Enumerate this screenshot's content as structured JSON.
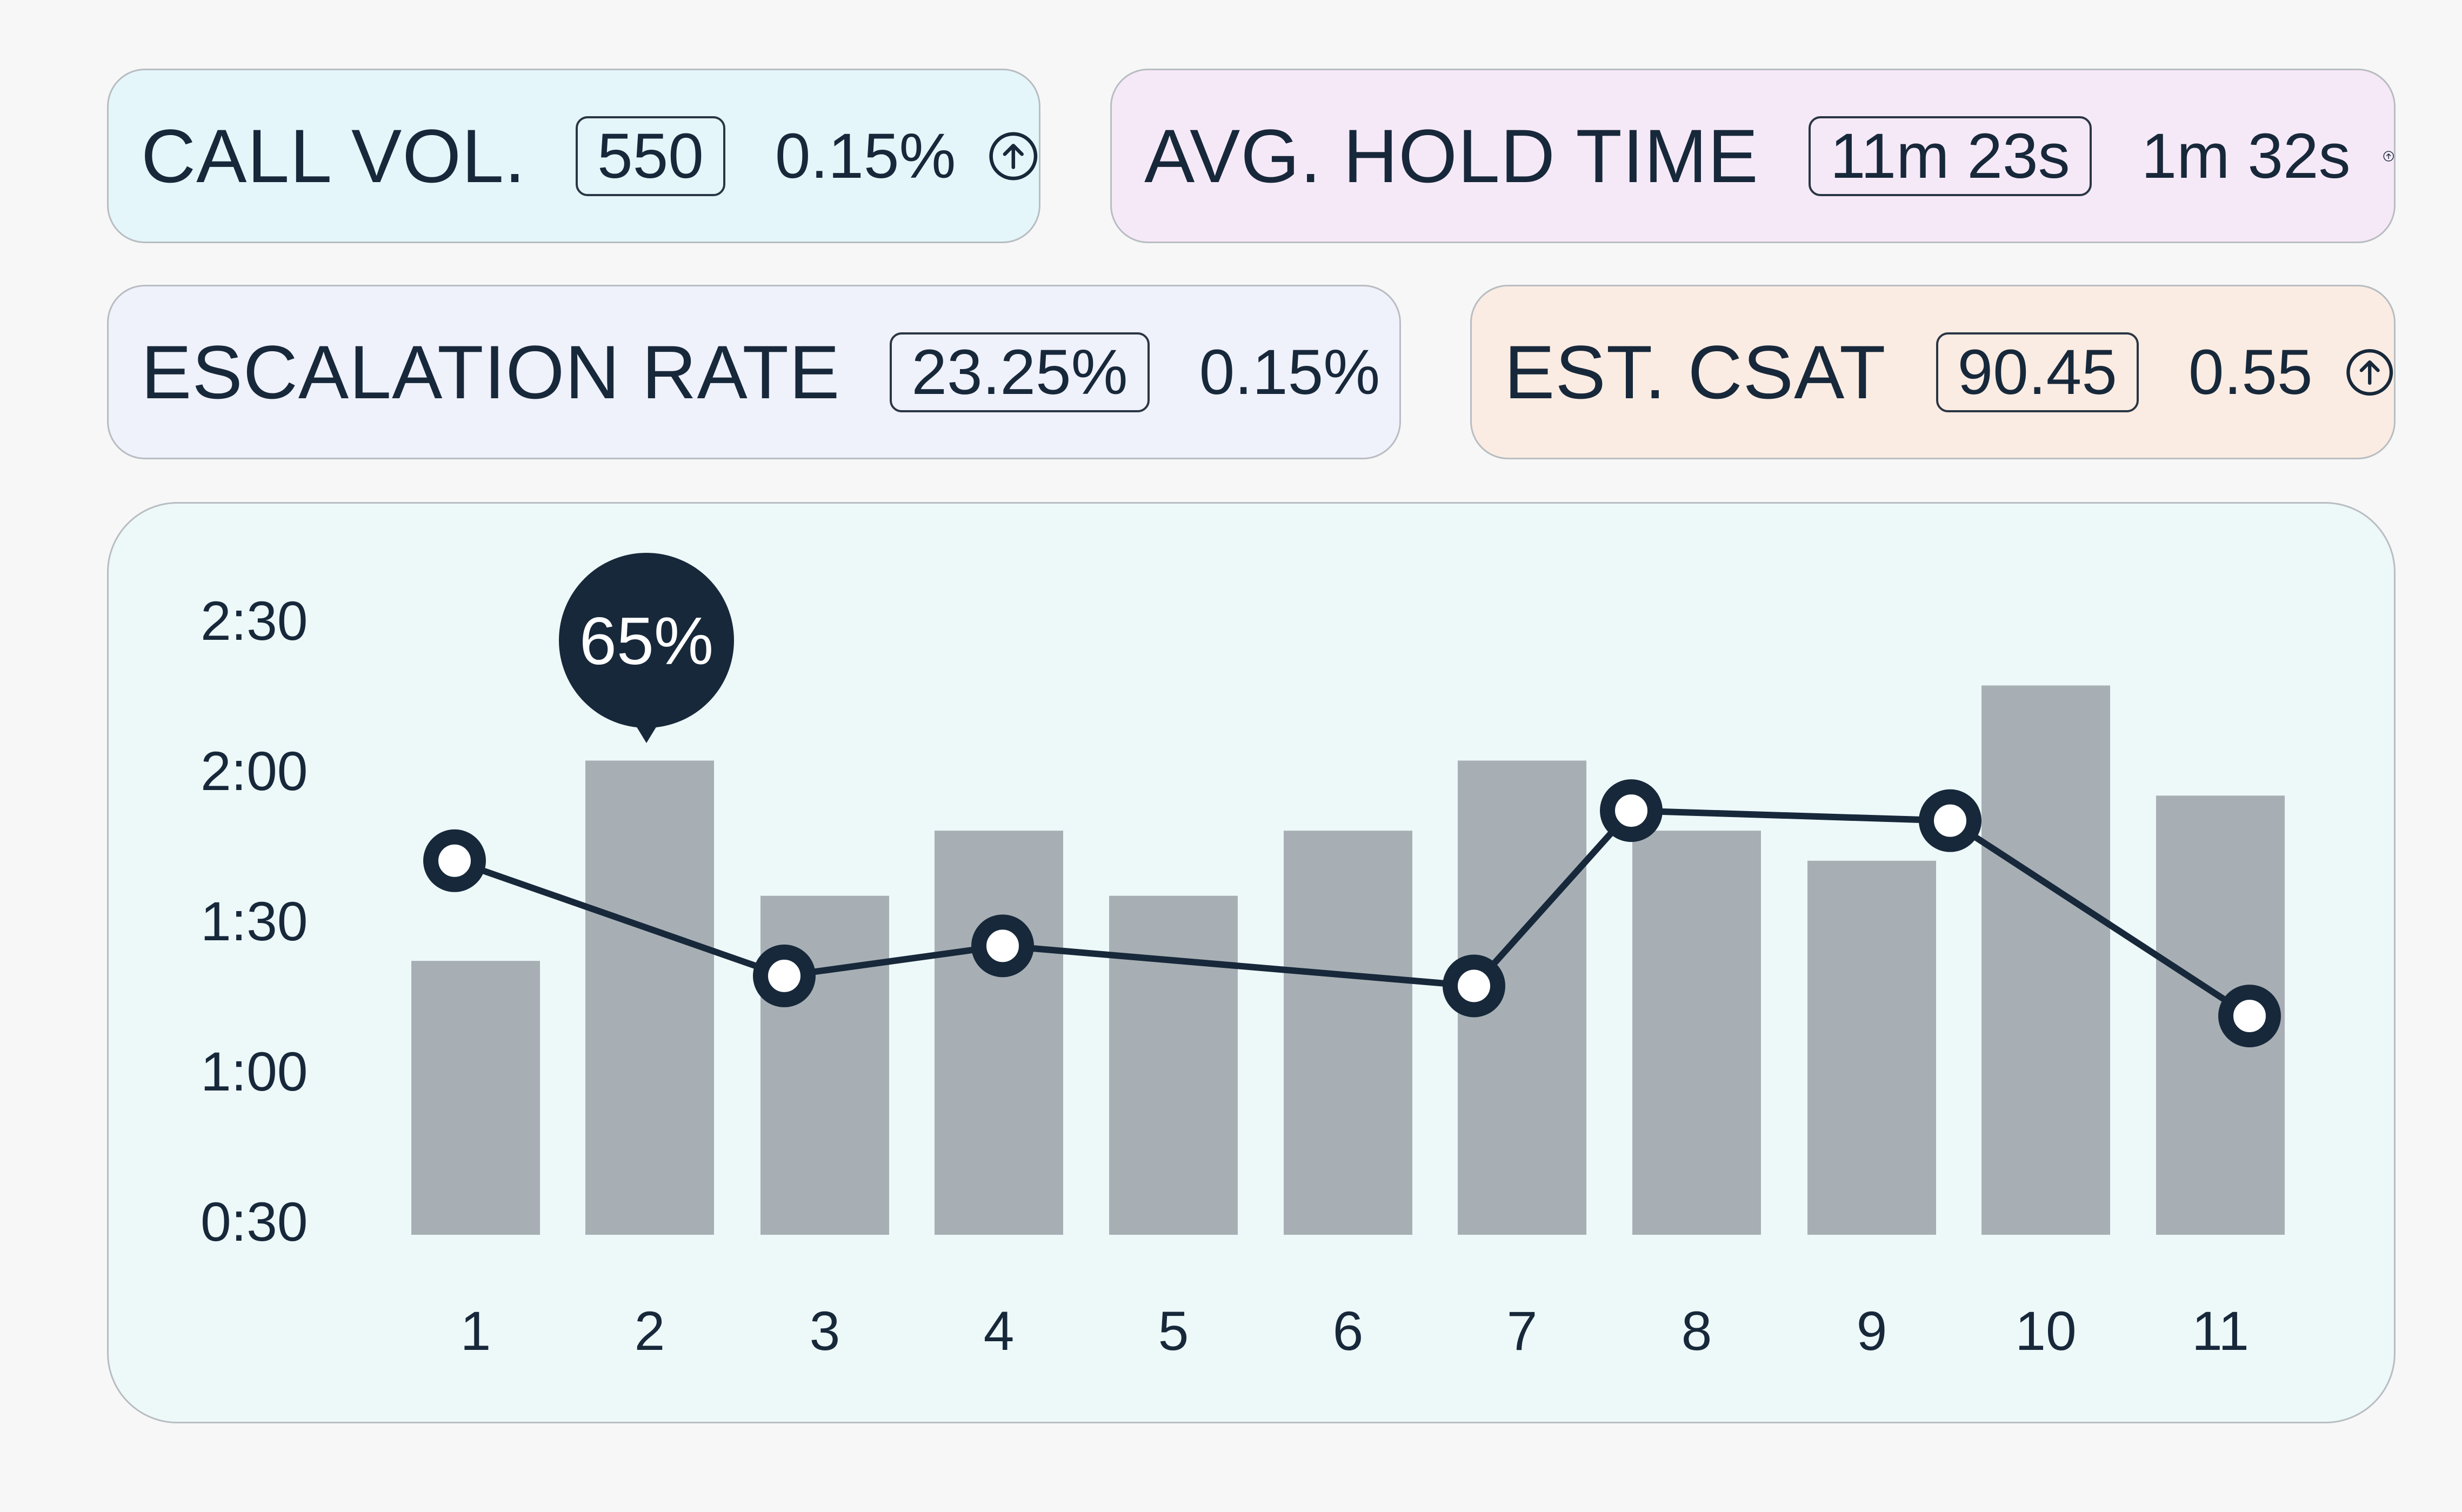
{
  "metrics": {
    "call_volume": {
      "label": "CALL VOL.",
      "value": "550",
      "delta": "0.15%",
      "trend_icon": "arrow-up-circle-icon"
    },
    "avg_hold_time": {
      "label": "AVG. HOLD TIME",
      "value": "11m 23s",
      "delta": "1m 32s",
      "trend_icon": "arrow-up-circle-icon"
    },
    "escalation_rate": {
      "label": "ESCALATION RATE",
      "value": "23.25%",
      "delta": "0.15%",
      "trend_icon": "arrow-up-circle-icon"
    },
    "est_csat": {
      "label": "EST. CSAT",
      "value": "90.45",
      "delta": "0.55",
      "trend_icon": "arrow-up-circle-icon"
    }
  },
  "colors": {
    "call_card_bg": "#e4f6f9",
    "hold_card_bg": "#f6e9f7",
    "esc_card_bg": "#eff1fb",
    "csat_card_bg": "#fbece3",
    "chart_bg": "#edf8f9",
    "bar": "#a7afb5",
    "line": "#17283a"
  },
  "chart_data": {
    "type": "bar",
    "categories": [
      "1",
      "2",
      "3",
      "4",
      "5",
      "6",
      "7",
      "8",
      "9",
      "10",
      "11"
    ],
    "y_ticks": [
      "2:30",
      "2:00",
      "1:30",
      "1:00",
      "0:30"
    ],
    "ylim_seconds": [
      30,
      150
    ],
    "series": [
      {
        "name": "bars",
        "type": "bar",
        "values_seconds": [
          82,
          122,
          95,
          108,
          95,
          108,
          122,
          108,
          102,
          137,
          115
        ]
      },
      {
        "name": "line",
        "type": "line",
        "values_seconds": [
          102,
          79,
          85,
          77,
          112,
          110,
          71
        ],
        "x_indices": [
          0,
          2,
          3,
          6,
          7,
          9,
          10
        ]
      }
    ],
    "tooltip": {
      "category": "2",
      "label": "65%"
    }
  }
}
